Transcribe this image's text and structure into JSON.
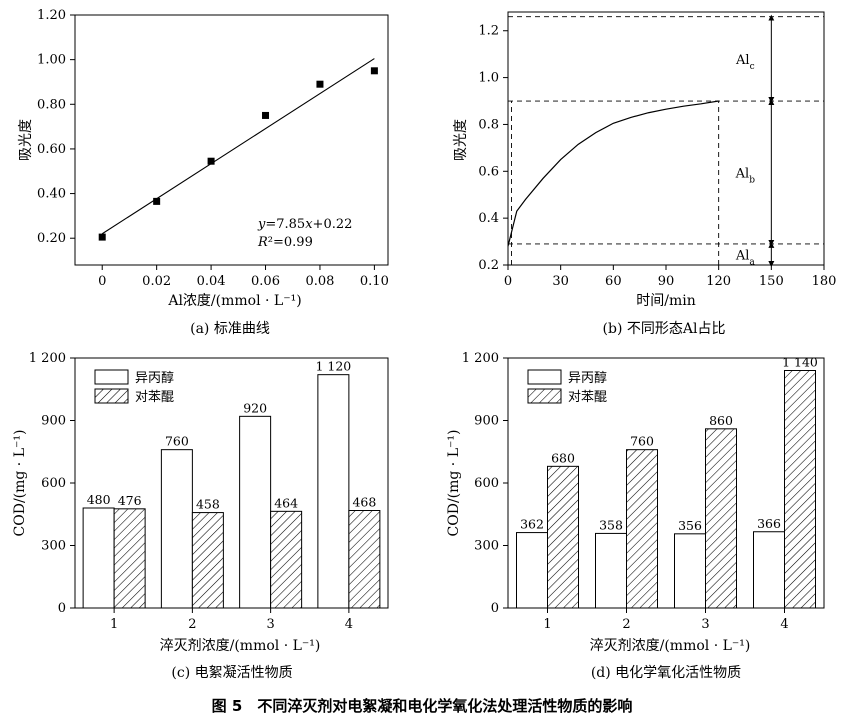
{
  "figure_title": "图 5　不同淬灭剂对电絮凝和电化学氧化法处理活性物质的影响",
  "chart_data": [
    {
      "id": "a",
      "type": "scatter",
      "caption": "(a) 标准曲线",
      "xlabel": "Al浓度/(mmol · L⁻¹)",
      "ylabel": "吸光度",
      "xlim": [
        -0.01,
        0.105
      ],
      "ylim": [
        0.08,
        1.2
      ],
      "xticks": [
        0,
        0.02,
        0.04,
        0.06,
        0.08,
        0.1
      ],
      "xtick_labels": [
        "0",
        "0.02",
        "0.04",
        "0.06",
        "0.08",
        "0.10"
      ],
      "yticks": [
        0.2,
        0.4,
        0.6,
        0.8,
        1.0,
        1.2
      ],
      "ytick_labels": [
        "0.20",
        "0.40",
        "0.60",
        "0.80",
        "1.00",
        "1.20"
      ],
      "points": [
        {
          "x": 0,
          "y": 0.205
        },
        {
          "x": 0.02,
          "y": 0.365
        },
        {
          "x": 0.04,
          "y": 0.545
        },
        {
          "x": 0.06,
          "y": 0.75
        },
        {
          "x": 0.08,
          "y": 0.89
        },
        {
          "x": 0.1,
          "y": 0.95
        }
      ],
      "fit": {
        "slope": 7.85,
        "intercept": 0.22,
        "x_range": [
          0,
          0.1
        ]
      },
      "equation": "y=7.85x+0.22",
      "r_squared": "R²=0.99"
    },
    {
      "id": "b",
      "type": "line",
      "caption": "(b) 不同形态Al占比",
      "xlabel": "时间/min",
      "ylabel": "吸光度",
      "xlim": [
        0,
        180
      ],
      "ylim": [
        0.2,
        1.28
      ],
      "xticks": [
        0,
        30,
        60,
        90,
        120,
        150,
        180
      ],
      "xtick_labels": [
        "0",
        "30",
        "60",
        "90",
        "120",
        "150",
        "180"
      ],
      "yticks": [
        0.2,
        0.4,
        0.6,
        0.8,
        1.0,
        1.2
      ],
      "ytick_labels": [
        "0.2",
        "0.4",
        "0.6",
        "0.8",
        "1.0",
        "1.2"
      ],
      "x": [
        0,
        5,
        10,
        20,
        30,
        40,
        50,
        60,
        70,
        80,
        90,
        100,
        110,
        120
      ],
      "y": [
        0.28,
        0.43,
        0.48,
        0.57,
        0.65,
        0.715,
        0.765,
        0.805,
        0.83,
        0.85,
        0.865,
        0.878,
        0.888,
        0.9
      ],
      "reference_levels": [
        0.29,
        0.9,
        1.26
      ],
      "reference_times": [
        2,
        120
      ],
      "regions": [
        {
          "label": "Al",
          "sub": "a",
          "from": 0.2,
          "to": 0.29
        },
        {
          "label": "Al",
          "sub": "b",
          "from": 0.29,
          "to": 0.9
        },
        {
          "label": "Al",
          "sub": "c",
          "from": 0.9,
          "to": 1.26
        }
      ]
    },
    {
      "id": "c",
      "type": "bar",
      "caption": "(c) 电絮凝活性物质",
      "xlabel": "淬灭剂浓度/(mmol · L⁻¹)",
      "ylabel": "COD/(mg · L⁻¹)",
      "ylim": [
        0,
        1200
      ],
      "yticks": [
        0,
        300,
        600,
        900,
        1200
      ],
      "ytick_labels": [
        "0",
        "300",
        "600",
        "900",
        "1 200"
      ],
      "categories": [
        "1",
        "2",
        "3",
        "4"
      ],
      "series": [
        {
          "name": "异丙醇",
          "values": [
            480,
            760,
            920,
            1120
          ],
          "labels": [
            "480",
            "760",
            "920",
            "1 120"
          ]
        },
        {
          "name": "对苯醌",
          "values": [
            476,
            458,
            464,
            468
          ],
          "labels": [
            "476",
            "458",
            "464",
            "468"
          ]
        }
      ]
    },
    {
      "id": "d",
      "type": "bar",
      "caption": "(d) 电化学氧化活性物质",
      "xlabel": "淬灭剂浓度/(mmol · L⁻¹)",
      "ylabel": "COD/(mg · L⁻¹)",
      "ylim": [
        0,
        1200
      ],
      "yticks": [
        0,
        300,
        600,
        900,
        1200
      ],
      "ytick_labels": [
        "0",
        "300",
        "600",
        "900",
        "1 200"
      ],
      "categories": [
        "1",
        "2",
        "3",
        "4"
      ],
      "series": [
        {
          "name": "异丙醇",
          "values": [
            362,
            358,
            356,
            366
          ],
          "labels": [
            "362",
            "358",
            "356",
            "366"
          ]
        },
        {
          "name": "对苯醌",
          "values": [
            680,
            760,
            860,
            1140
          ],
          "labels": [
            "680",
            "760",
            "860",
            "1 140"
          ]
        }
      ]
    }
  ]
}
